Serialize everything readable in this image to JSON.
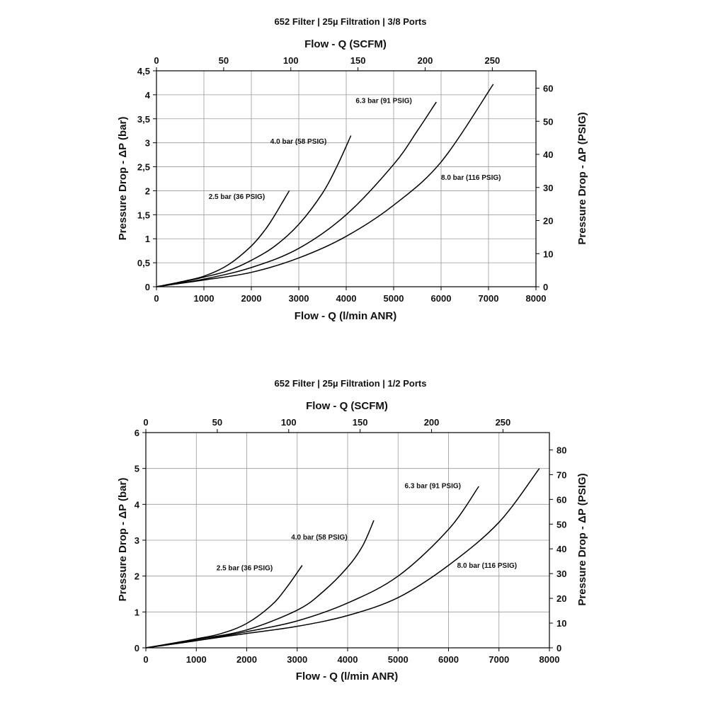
{
  "chart_data": [
    {
      "type": "line",
      "title": "652 Filter | 25µ Filtration | 3/8 Ports",
      "xlabel": "Flow - Q (l/min ANR)",
      "x2label": "Flow - Q (SCFM)",
      "ylabel": "Pressure Drop - ΔP (bar)",
      "y2label": "Pressure Drop - ΔP (PSIG)",
      "xlim": [
        0,
        8000
      ],
      "ylim": [
        0,
        4.5
      ],
      "x2lim": [
        0,
        282.5
      ],
      "y2lim": [
        0,
        65.25
      ],
      "grid": true,
      "xticks": [
        0,
        1000,
        2000,
        3000,
        4000,
        5000,
        6000,
        7000,
        8000
      ],
      "xtick_labels": [
        "0",
        "1000",
        "2000",
        "3000",
        "4000",
        "5000",
        "6000",
        "7000",
        "8000"
      ],
      "yticks": [
        0,
        0.5,
        1,
        1.5,
        2,
        2.5,
        3,
        3.5,
        4,
        4.5
      ],
      "ytick_labels": [
        "0",
        "0,5",
        "1",
        "1,5",
        "2",
        "2,5",
        "3",
        "3,5",
        "4",
        "4,5"
      ],
      "x2ticks": [
        0,
        50,
        100,
        150,
        200,
        250
      ],
      "x2tick_labels": [
        "0",
        "50",
        "100",
        "150",
        "200",
        "250"
      ],
      "y2ticks": [
        0,
        10,
        20,
        30,
        40,
        50,
        60
      ],
      "y2tick_labels": [
        "0",
        "10",
        "20",
        "30",
        "40",
        "50",
        "60"
      ],
      "series": [
        {
          "name": "2.5 bar (36 PSIG)",
          "x": [
            0,
            500,
            1000,
            1500,
            2000,
            2300,
            2500,
            2650,
            2800
          ],
          "y": [
            0,
            0.1,
            0.22,
            0.45,
            0.85,
            1.2,
            1.5,
            1.75,
            2.0
          ],
          "label_x": 1100,
          "label_y": 1.83
        },
        {
          "name": "4.0 bar (58 PSIG)",
          "x": [
            0,
            500,
            1000,
            1500,
            2000,
            2500,
            3000,
            3500,
            3800,
            4100
          ],
          "y": [
            0,
            0.09,
            0.2,
            0.33,
            0.55,
            0.85,
            1.3,
            1.95,
            2.5,
            3.15
          ],
          "label_x": 2400,
          "label_y": 2.98
        },
        {
          "name": "6.3 bar (91 PSIG)",
          "x": [
            0,
            1000,
            2000,
            3000,
            4000,
            5000,
            5500,
            5900
          ],
          "y": [
            0,
            0.16,
            0.4,
            0.8,
            1.5,
            2.55,
            3.25,
            3.85
          ],
          "label_x": 4200,
          "label_y": 3.83
        },
        {
          "name": "8.0 bar (116 PSIG)",
          "x": [
            0,
            1000,
            2000,
            3000,
            4000,
            5000,
            6000,
            7100
          ],
          "y": [
            0,
            0.14,
            0.3,
            0.6,
            1.05,
            1.7,
            2.6,
            4.22
          ],
          "label_x": 6000,
          "label_y": 2.23
        }
      ]
    },
    {
      "type": "line",
      "title": "652 Filter | 25µ Filtration | 1/2 Ports",
      "xlabel": "Flow - Q (l/min ANR)",
      "x2label": "Flow - Q (SCFM)",
      "ylabel": "Pressure Drop - ΔP (bar)",
      "y2label": "Pressure Drop - ΔP (PSIG)",
      "xlim": [
        0,
        8000
      ],
      "ylim": [
        0,
        6
      ],
      "x2lim": [
        0,
        282.5
      ],
      "y2lim": [
        0,
        87
      ],
      "grid": true,
      "xticks": [
        0,
        1000,
        2000,
        3000,
        4000,
        5000,
        6000,
        7000,
        8000
      ],
      "xtick_labels": [
        "0",
        "1000",
        "2000",
        "3000",
        "4000",
        "5000",
        "6000",
        "7000",
        "8000"
      ],
      "yticks": [
        0,
        1,
        2,
        3,
        4,
        5,
        6
      ],
      "ytick_labels": [
        "0",
        "1",
        "2",
        "3",
        "4",
        "5",
        "6"
      ],
      "x2ticks": [
        0,
        50,
        100,
        150,
        200,
        250
      ],
      "x2tick_labels": [
        "0",
        "50",
        "100",
        "150",
        "200",
        "250"
      ],
      "y2ticks": [
        0,
        10,
        20,
        30,
        40,
        50,
        60,
        70,
        80
      ],
      "y2tick_labels": [
        "0",
        "10",
        "20",
        "30",
        "40",
        "50",
        "60",
        "70",
        "80"
      ],
      "series": [
        {
          "name": "2.5 bar (36 PSIG)",
          "x": [
            0,
            500,
            1000,
            1500,
            2000,
            2500,
            2800,
            3100
          ],
          "y": [
            0,
            0.12,
            0.25,
            0.4,
            0.68,
            1.2,
            1.7,
            2.3
          ],
          "label_x": 1400,
          "label_y": 2.16
        },
        {
          "name": "4.0 bar (58 PSIG)",
          "x": [
            0,
            1000,
            2000,
            3000,
            3500,
            4000,
            4300,
            4520
          ],
          "y": [
            0,
            0.23,
            0.5,
            1.05,
            1.55,
            2.25,
            2.85,
            3.55
          ],
          "label_x": 2880,
          "label_y": 3.02
        },
        {
          "name": "6.3 bar (91 PSIG)",
          "x": [
            0,
            1000,
            2000,
            3000,
            4000,
            5000,
            6000,
            6600
          ],
          "y": [
            0,
            0.2,
            0.45,
            0.75,
            1.25,
            2.0,
            3.3,
            4.5
          ],
          "label_x": 5130,
          "label_y": 4.45
        },
        {
          "name": "8.0 bar (116 PSIG)",
          "x": [
            0,
            1000,
            2000,
            3000,
            4000,
            5000,
            6000,
            7000,
            7800
          ],
          "y": [
            0,
            0.2,
            0.4,
            0.6,
            0.9,
            1.4,
            2.3,
            3.5,
            5.0
          ],
          "label_x": 6170,
          "label_y": 2.23
        }
      ]
    }
  ]
}
